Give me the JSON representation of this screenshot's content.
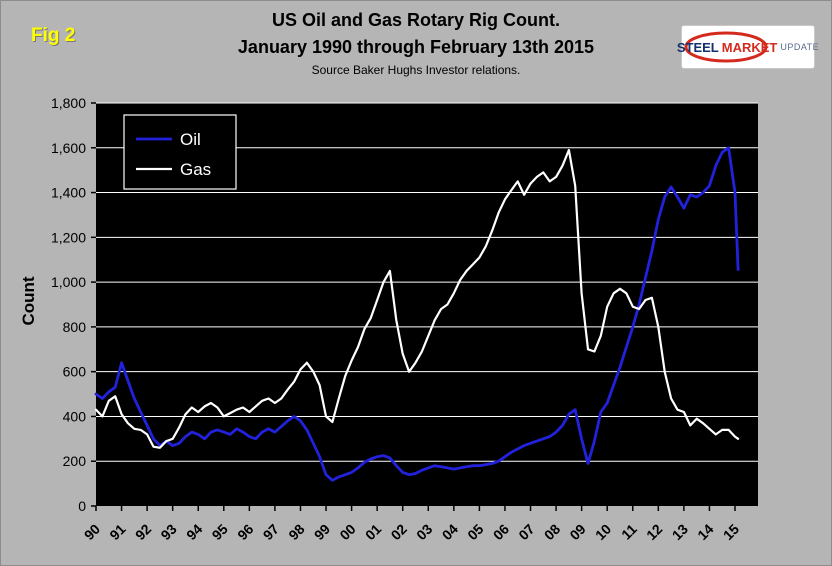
{
  "fig_label": "Fig 2",
  "header": {
    "title_line1": "US Oil and Gas Rotary Rig Count.",
    "title_line2": "January 1990 through February 13th 2015",
    "source": "Source Baker Hughs Investor relations."
  },
  "logo": {
    "steel": "STEEL",
    "market": "MARKET",
    "update": "UPDATE"
  },
  "colors": {
    "background": "#b5b5b5",
    "plot_bg": "#000000",
    "grid": "#ffffff",
    "oil": "#2222dd",
    "gas": "#ffffff",
    "fig_label": "#ffff00",
    "logo_red": "#d42a1e",
    "logo_navy": "#13306b"
  },
  "chart_data": {
    "type": "line",
    "title": "US Oil and Gas Rotary Rig Count. January 1990 through February 13th 2015",
    "subtitle": "Source Baker Hughs Investor relations.",
    "xlabel": "",
    "ylabel": "Count",
    "ylim": [
      0,
      1800
    ],
    "xlim": [
      1990,
      2015.9
    ],
    "grid": "horizontal-white-on-black",
    "legend_position": "upper-left-inside",
    "y_ticks": {
      "values": [
        0,
        200,
        400,
        600,
        800,
        1000,
        1200,
        1400,
        1600,
        1800
      ],
      "labels": [
        "0",
        "200",
        "400",
        "600",
        "800",
        "1,000",
        "1,200",
        "1,400",
        "1,600",
        "1,800"
      ]
    },
    "x_ticks": {
      "values": [
        1990,
        1991,
        1992,
        1993,
        1994,
        1995,
        1996,
        1997,
        1998,
        1999,
        2000,
        2001,
        2002,
        2003,
        2004,
        2005,
        2006,
        2007,
        2008,
        2009,
        2010,
        2011,
        2012,
        2013,
        2014,
        2015
      ],
      "labels": [
        "90",
        "91",
        "92",
        "93",
        "94",
        "95",
        "96",
        "97",
        "98",
        "99",
        "00",
        "01",
        "02",
        "03",
        "04",
        "05",
        "06",
        "07",
        "08",
        "09",
        "10",
        "11",
        "12",
        "13",
        "14",
        "15"
      ]
    },
    "x": [
      1990.0,
      1990.25,
      1990.5,
      1990.75,
      1991.0,
      1991.25,
      1991.5,
      1991.75,
      1992.0,
      1992.25,
      1992.5,
      1992.75,
      1993.0,
      1993.25,
      1993.5,
      1993.75,
      1994.0,
      1994.25,
      1994.5,
      1994.75,
      1995.0,
      1995.25,
      1995.5,
      1995.75,
      1996.0,
      1996.25,
      1996.5,
      1996.75,
      1997.0,
      1997.25,
      1997.5,
      1997.75,
      1998.0,
      1998.25,
      1998.5,
      1998.75,
      1999.0,
      1999.25,
      1999.5,
      1999.75,
      2000.0,
      2000.25,
      2000.5,
      2000.75,
      2001.0,
      2001.25,
      2001.5,
      2001.75,
      2002.0,
      2002.25,
      2002.5,
      2002.75,
      2003.0,
      2003.25,
      2003.5,
      2003.75,
      2004.0,
      2004.25,
      2004.5,
      2004.75,
      2005.0,
      2005.25,
      2005.5,
      2005.75,
      2006.0,
      2006.25,
      2006.5,
      2006.75,
      2007.0,
      2007.25,
      2007.5,
      2007.75,
      2008.0,
      2008.25,
      2008.5,
      2008.75,
      2009.0,
      2009.25,
      2009.5,
      2009.75,
      2010.0,
      2010.25,
      2010.5,
      2010.75,
      2011.0,
      2011.25,
      2011.5,
      2011.75,
      2012.0,
      2012.25,
      2012.5,
      2012.75,
      2013.0,
      2013.25,
      2013.5,
      2013.75,
      2014.0,
      2014.25,
      2014.5,
      2014.75,
      2015.0,
      2015.12
    ],
    "series": [
      {
        "name": "Oil",
        "color": "#2222dd",
        "width": 2.8,
        "values": [
          500,
          480,
          510,
          530,
          640,
          560,
          480,
          420,
          360,
          300,
          270,
          290,
          270,
          280,
          310,
          330,
          320,
          300,
          330,
          340,
          330,
          320,
          345,
          330,
          310,
          300,
          330,
          345,
          330,
          355,
          380,
          400,
          380,
          340,
          280,
          220,
          140,
          115,
          130,
          140,
          150,
          170,
          195,
          210,
          220,
          225,
          215,
          180,
          150,
          140,
          145,
          160,
          170,
          180,
          175,
          170,
          165,
          170,
          175,
          180,
          180,
          185,
          190,
          200,
          220,
          240,
          255,
          270,
          280,
          290,
          300,
          310,
          330,
          360,
          410,
          430,
          300,
          190,
          290,
          420,
          460,
          540,
          620,
          710,
          800,
          900,
          1020,
          1140,
          1280,
          1380,
          1425,
          1380,
          1330,
          1390,
          1380,
          1400,
          1430,
          1520,
          1580,
          1600,
          1400,
          1056
        ]
      },
      {
        "name": "Gas",
        "color": "#ffffff",
        "width": 2.2,
        "values": [
          430,
          400,
          470,
          490,
          410,
          370,
          345,
          340,
          320,
          265,
          260,
          290,
          300,
          350,
          410,
          440,
          420,
          445,
          460,
          440,
          400,
          415,
          430,
          440,
          420,
          445,
          470,
          480,
          460,
          480,
          520,
          555,
          610,
          640,
          600,
          540,
          400,
          375,
          480,
          580,
          650,
          710,
          790,
          840,
          920,
          1000,
          1050,
          830,
          680,
          600,
          640,
          690,
          760,
          830,
          880,
          900,
          950,
          1010,
          1050,
          1080,
          1110,
          1160,
          1230,
          1310,
          1370,
          1410,
          1450,
          1390,
          1440,
          1470,
          1490,
          1450,
          1470,
          1520,
          1590,
          1430,
          950,
          700,
          690,
          760,
          890,
          950,
          970,
          950,
          890,
          880,
          920,
          930,
          800,
          600,
          480,
          430,
          420,
          360,
          390,
          370,
          345,
          320,
          340,
          340,
          310,
          300
        ]
      }
    ]
  }
}
